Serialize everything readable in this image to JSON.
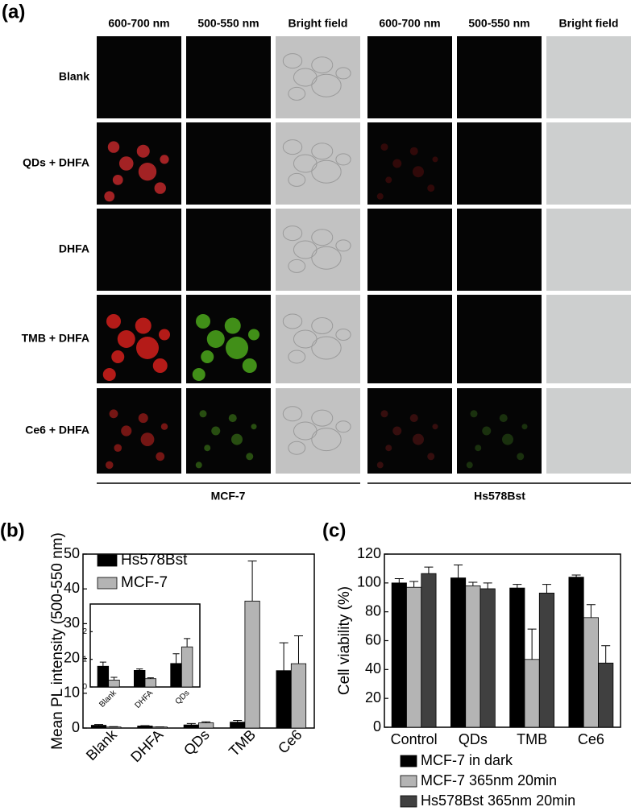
{
  "panel_a": {
    "label": "(a)",
    "columns": [
      "600-700 nm",
      "500-550 nm",
      "Bright field",
      "600-700 nm",
      "500-550 nm",
      "Bright field"
    ],
    "rows": [
      "Blank",
      "QDs + DHFA",
      "DHFA",
      "TMB + DHFA",
      "Ce6 + DHFA"
    ],
    "groups": [
      "MCF-7",
      "Hs578Bst"
    ]
  },
  "chart_data": [
    {
      "type": "bar",
      "panel_label": "(b)",
      "ylabel": "Mean PL intensity (500-550 nm)",
      "categories": [
        "Blank",
        "DHFA",
        "QDs",
        "TMB",
        "Ce6"
      ],
      "series": [
        {
          "name": "Hs578Bst",
          "color": "#000000",
          "values": [
            0.8,
            0.6,
            0.9,
            1.7,
            16.5
          ],
          "errors": [
            0.2,
            0.1,
            0.4,
            0.5,
            8
          ]
        },
        {
          "name": "MCF-7",
          "color": "#b4b4b4",
          "values": [
            0.3,
            0.3,
            1.5,
            36.5,
            18.5
          ],
          "errors": [
            0.1,
            0.05,
            0.3,
            11.5,
            8
          ]
        }
      ],
      "ylim": [
        0,
        50
      ],
      "yticks": [
        0,
        10,
        20,
        30,
        40,
        50
      ],
      "legend": "upper left"
    },
    {
      "type": "bar",
      "categories": [
        "Blank",
        "DHFA",
        "QDs"
      ],
      "series": [
        {
          "color": "#000000",
          "values": [
            0.75,
            0.6,
            0.85
          ],
          "errors": [
            0.15,
            0.05,
            0.35
          ]
        },
        {
          "color": "#b4b4b4",
          "values": [
            0.25,
            0.3,
            1.45
          ],
          "errors": [
            0.1,
            0.03,
            0.3
          ]
        }
      ],
      "ylim": [
        0,
        3
      ],
      "yticks": [
        0,
        1,
        2
      ]
    },
    {
      "type": "bar",
      "panel_label": "(c)",
      "ylabel": "Cell viability (%)",
      "categories": [
        "Control",
        "QDs",
        "TMB",
        "Ce6"
      ],
      "series": [
        {
          "name": "MCF-7 in dark",
          "color": "#000000",
          "values": [
            100,
            103.5,
            96.5,
            104
          ],
          "errors": [
            3,
            9,
            2.5,
            1.5
          ]
        },
        {
          "name": "MCF-7 365nm 20min",
          "color": "#b4b4b4",
          "values": [
            97,
            98,
            47,
            76
          ],
          "errors": [
            4,
            2.5,
            21,
            9
          ]
        },
        {
          "name": "Hs578Bst 365nm 20min",
          "color": "#404040",
          "values": [
            106.5,
            96,
            93,
            44.5
          ],
          "errors": [
            4.5,
            4,
            6,
            12
          ]
        }
      ],
      "ylim": [
        0,
        120
      ],
      "yticks": [
        0,
        20,
        40,
        60,
        80,
        100,
        120
      ],
      "legend": "below"
    }
  ]
}
